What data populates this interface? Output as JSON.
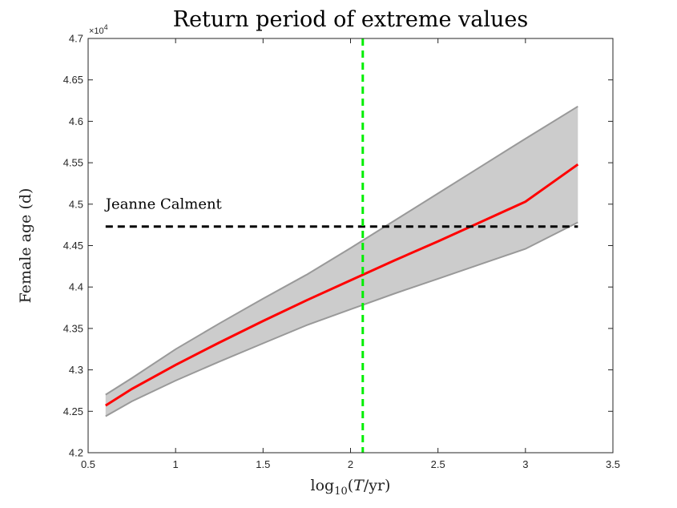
{
  "chart_data": {
    "type": "line",
    "title": "Return period of extreme values",
    "xlabel": "log10(T/yr)",
    "ylabel": "Female age (d)",
    "xlim": [
      0.5,
      3.5
    ],
    "ylim": [
      4.2,
      4.7
    ],
    "y_multiplier": "×10^4",
    "xticks": [
      "0.5",
      "1",
      "1.5",
      "2",
      "2.5",
      "3",
      "3.5"
    ],
    "yticks": [
      "4.2",
      "4.25",
      "4.3",
      "4.35",
      "4.4",
      "4.45",
      "4.5",
      "4.55",
      "4.6",
      "4.65",
      "4.7"
    ],
    "grid": false,
    "series": [
      {
        "role": "estimate",
        "color": "#ff0000",
        "x": [
          0.6,
          0.75,
          1.0,
          1.25,
          1.5,
          1.75,
          2.0,
          2.25,
          2.5,
          2.75,
          3.0,
          3.3
        ],
        "y": [
          4.257,
          4.277,
          4.306,
          4.333,
          4.359,
          4.384,
          4.408,
          4.432,
          4.455,
          4.479,
          4.503,
          4.548
        ]
      },
      {
        "role": "confidence-band-upper",
        "color": "#999999",
        "x": [
          0.6,
          0.75,
          1.0,
          1.25,
          1.5,
          1.75,
          2.0,
          2.25,
          2.5,
          2.75,
          3.0,
          3.3
        ],
        "y": [
          4.27,
          4.29,
          4.325,
          4.356,
          4.386,
          4.415,
          4.447,
          4.48,
          4.513,
          4.546,
          4.579,
          4.618
        ]
      },
      {
        "role": "confidence-band-lower",
        "color": "#999999",
        "x": [
          0.6,
          0.75,
          1.0,
          1.25,
          1.5,
          1.75,
          2.0,
          2.25,
          2.5,
          2.75,
          3.0,
          3.3
        ],
        "y": [
          4.244,
          4.262,
          4.287,
          4.31,
          4.332,
          4.354,
          4.373,
          4.392,
          4.41,
          4.428,
          4.446,
          4.478
        ]
      }
    ],
    "band_fill": "#cccccc",
    "reference_lines": [
      {
        "orientation": "horizontal",
        "y": 4.473,
        "x_range": [
          0.6,
          3.3
        ],
        "color": "#000000",
        "style": "dashed",
        "label": "Jeanne Calment"
      },
      {
        "orientation": "vertical",
        "x": 2.07,
        "color": "#00ee00",
        "style": "dashed"
      }
    ]
  }
}
